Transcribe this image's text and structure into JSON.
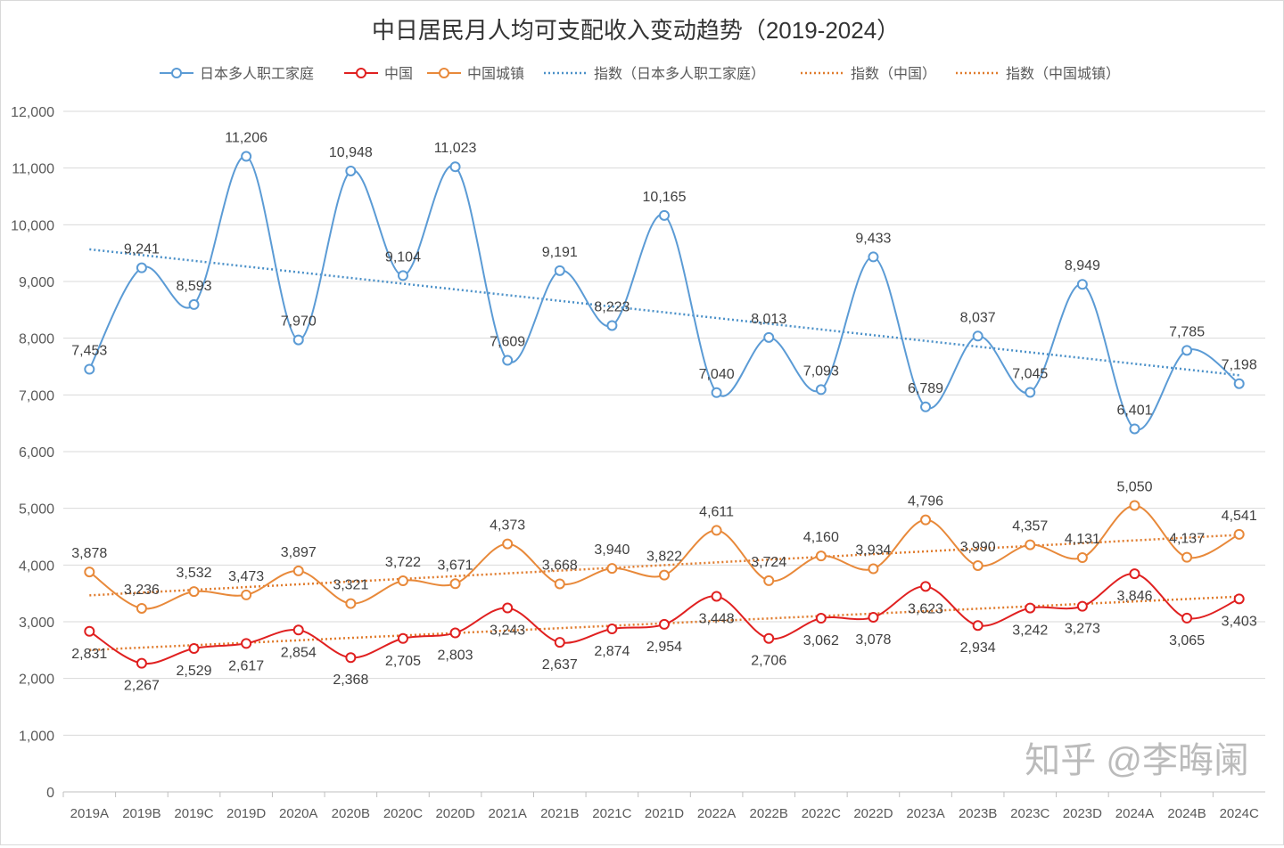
{
  "chart_data": {
    "type": "line",
    "title": "中日居民月人均可支配收入变动趋势（2019-2024）",
    "xlabel": "",
    "ylabel": "",
    "ylim": [
      0,
      12000
    ],
    "yticks": [
      0,
      1000,
      2000,
      3000,
      4000,
      5000,
      6000,
      7000,
      8000,
      9000,
      10000,
      11000,
      12000
    ],
    "ytick_labels": [
      "0",
      "1,000",
      "2,000",
      "3,000",
      "4,000",
      "5,000",
      "6,000",
      "7,000",
      "8,000",
      "9,000",
      "10,000",
      "11,000",
      "12,000"
    ],
    "grid": true,
    "legend": "top",
    "categories": [
      "2019A",
      "2019B",
      "2019C",
      "2019D",
      "2020A",
      "2020B",
      "2020C",
      "2020D",
      "2021A",
      "2021B",
      "2021C",
      "2021D",
      "2022A",
      "2022B",
      "2022C",
      "2022D",
      "2023A",
      "2023B",
      "2023C",
      "2023D",
      "2024A",
      "2024B",
      "2024C"
    ],
    "series": [
      {
        "name": "日本多人职工家庭",
        "color": "#5b9bd5",
        "smooth": true,
        "label_pos": "above",
        "values": [
          7453,
          9241,
          8593,
          11206,
          7970,
          10948,
          9104,
          11023,
          7609,
          9191,
          8223,
          10165,
          7040,
          8013,
          7093,
          9433,
          6789,
          8037,
          7045,
          8949,
          6401,
          7785,
          7198
        ]
      },
      {
        "name": "中国",
        "color": "#e02020",
        "smooth": true,
        "label_pos": "below",
        "values": [
          2831,
          2267,
          2529,
          2617,
          2854,
          2368,
          2705,
          2803,
          3243,
          2637,
          2874,
          2954,
          3448,
          2706,
          3062,
          3078,
          3623,
          2934,
          3242,
          3273,
          3846,
          3065,
          3403
        ]
      },
      {
        "name": "中国城镇",
        "color": "#e8893a",
        "smooth": true,
        "label_pos": "above",
        "values": [
          3878,
          3236,
          3532,
          3473,
          3897,
          3321,
          3722,
          3671,
          4373,
          3668,
          3940,
          3822,
          4611,
          3724,
          4160,
          3934,
          4796,
          3990,
          4357,
          4131,
          5050,
          4137,
          4541
        ]
      }
    ],
    "trendlines": [
      {
        "name": "指数（日本多人职工家庭）",
        "of_series": 0,
        "color": "#4a90c8",
        "style": "dotted"
      },
      {
        "name": "指数（中国）",
        "of_series": 1,
        "color": "#e07b2c",
        "style": "dotted"
      },
      {
        "name": "指数（中国城镇）",
        "of_series": 2,
        "color": "#e07b2c",
        "style": "dotted"
      }
    ]
  },
  "watermark": "知乎 @李晦阑"
}
